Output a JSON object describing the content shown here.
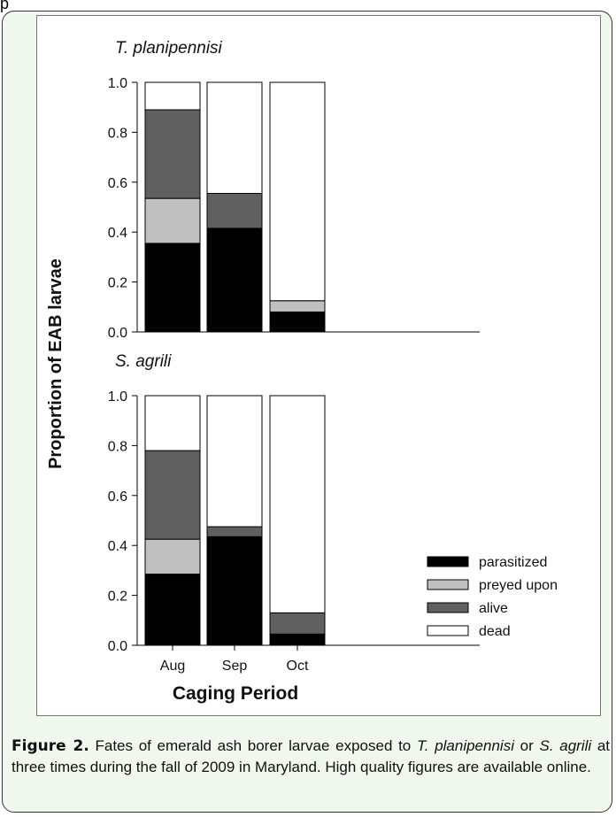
{
  "chart_data": [
    {
      "type": "bar",
      "stacked": true,
      "title": "T. planipennisi",
      "categories": [
        "Aug",
        "Sep",
        "Oct"
      ],
      "series": [
        {
          "name": "parasitized",
          "values": [
            0.355,
            0.415,
            0.08
          ]
        },
        {
          "name": "preyed upon",
          "values": [
            0.18,
            0.0,
            0.045
          ]
        },
        {
          "name": "alive",
          "values": [
            0.355,
            0.14,
            0.0
          ]
        },
        {
          "name": "dead",
          "values": [
            0.11,
            0.445,
            0.875
          ]
        }
      ],
      "ylim": [
        0,
        1
      ],
      "yticks": [
        "0.0",
        "0.2",
        "0.4",
        "0.6",
        "0.8",
        "1.0"
      ]
    },
    {
      "type": "bar",
      "stacked": true,
      "title": "S. agrili",
      "categories": [
        "Aug",
        "Sep",
        "Oct"
      ],
      "series": [
        {
          "name": "parasitized",
          "values": [
            0.285,
            0.435,
            0.045
          ]
        },
        {
          "name": "preyed upon",
          "values": [
            0.14,
            0.0,
            0.0
          ]
        },
        {
          "name": "alive",
          "values": [
            0.355,
            0.04,
            0.085
          ]
        },
        {
          "name": "dead",
          "values": [
            0.22,
            0.525,
            0.87
          ]
        }
      ],
      "ylim": [
        0,
        1
      ],
      "yticks": [
        "0.0",
        "0.2",
        "0.4",
        "0.6",
        "0.8",
        "1.0"
      ]
    }
  ],
  "ylabel": "Proportion of EAB larvae",
  "xlabel": "Caging Period",
  "legend": {
    "placement": "lower-right",
    "items": [
      {
        "label": "parasitized",
        "color": "#000000"
      },
      {
        "label": "preyed upon",
        "color": "#c0c0c0"
      },
      {
        "label": "alive",
        "color": "#606060"
      },
      {
        "label": "dead",
        "color": "#ffffff"
      }
    ]
  },
  "caption": {
    "label": "Figure 2.",
    "text_1": " Fates of emerald ash borer larvae exposed to ",
    "species_1": "T. planipennisi",
    "text_2": " or ",
    "species_2": "S. agrili",
    "text_3": " at three times during the fall of 2009 in Maryland. High quality figures are available online."
  },
  "top_stub": "p"
}
